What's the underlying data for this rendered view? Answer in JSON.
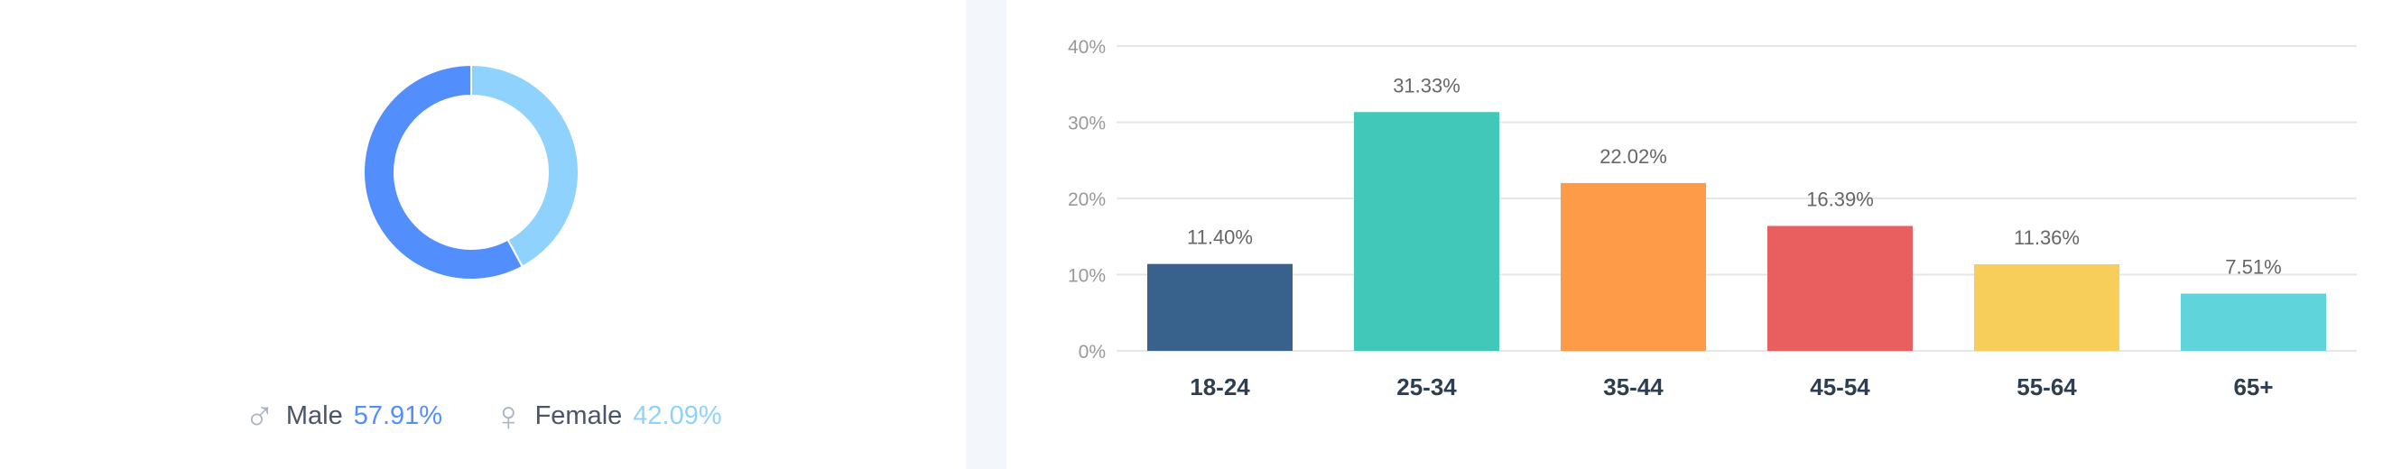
{
  "chart_data": [
    {
      "type": "pie",
      "subtype": "donut",
      "slices": [
        {
          "name": "Male",
          "value": 57.91,
          "label": "57.91%",
          "color": "#528ffc"
        },
        {
          "name": "Female",
          "value": 42.09,
          "label": "42.09%",
          "color": "#8fd2fe"
        }
      ],
      "legend": "bottom"
    },
    {
      "type": "bar",
      "categories": [
        "18-24",
        "25-34",
        "35-44",
        "45-54",
        "55-64",
        "65+"
      ],
      "values": [
        11.4,
        31.33,
        22.02,
        16.39,
        11.36,
        7.51
      ],
      "data_labels": [
        "11.40%",
        "31.33%",
        "22.02%",
        "16.39%",
        "11.36%",
        "7.51%"
      ],
      "colors": [
        "#38618b",
        "#42c8b9",
        "#fe9b48",
        "#e95f60",
        "#f7ce5a",
        "#5fd4da"
      ],
      "yticks": [
        "0%",
        "10%",
        "20%",
        "30%",
        "40%"
      ],
      "ytick_values": [
        0,
        10,
        20,
        30,
        40
      ],
      "ylim": [
        0,
        40
      ],
      "grid": true,
      "xlabel": "",
      "ylabel": ""
    }
  ],
  "legend": {
    "male_icon": "male-symbol-icon",
    "female_icon": "female-symbol-icon",
    "male_symbol": "♂",
    "female_symbol": "♀"
  }
}
